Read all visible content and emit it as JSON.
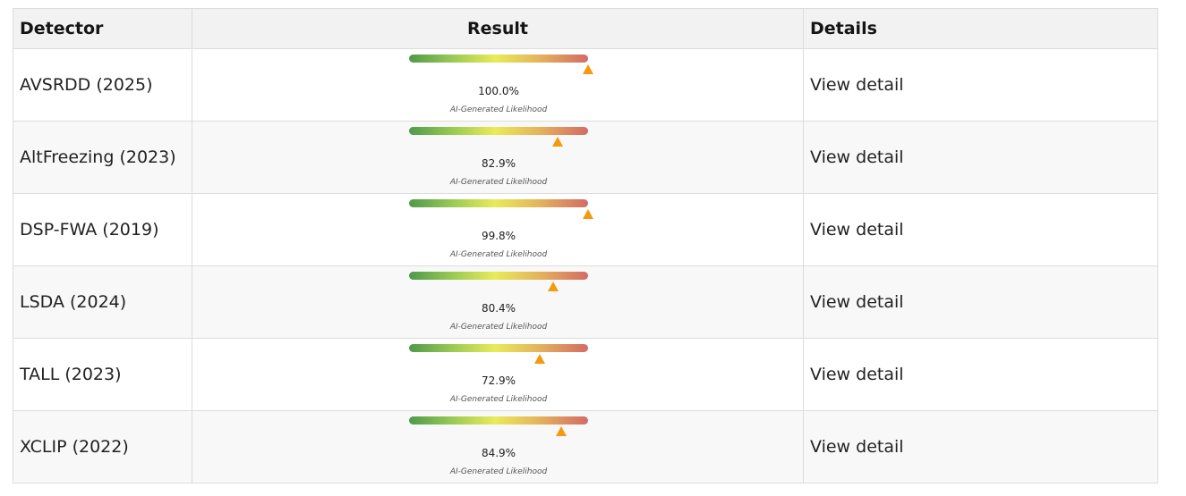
{
  "table": {
    "headers": {
      "detector": "Detector",
      "result": "Result",
      "details": "Details"
    },
    "colors": {
      "marker": "#f39a0e",
      "gradient_start": "#4f9a4b",
      "gradient_mid": "#e9ea5a",
      "gradient_end": "#d36b66"
    },
    "rows": [
      {
        "detector": "AVSRDD (2025)",
        "likelihood": 100.0,
        "percent_label": "100.0%",
        "sublabel": "AI-Generated Likelihood",
        "link": "View detail"
      },
      {
        "detector": "AltFreezing (2023)",
        "likelihood": 82.9,
        "percent_label": "82.9%",
        "sublabel": "AI-Generated Likelihood",
        "link": "View detail"
      },
      {
        "detector": "DSP-FWA (2019)",
        "likelihood": 99.8,
        "percent_label": "99.8%",
        "sublabel": "AI-Generated Likelihood",
        "link": "View detail"
      },
      {
        "detector": "LSDA (2024)",
        "likelihood": 80.4,
        "percent_label": "80.4%",
        "sublabel": "AI-Generated Likelihood",
        "link": "View detail"
      },
      {
        "detector": "TALL (2023)",
        "likelihood": 72.9,
        "percent_label": "72.9%",
        "sublabel": "AI-Generated Likelihood",
        "link": "View detail"
      },
      {
        "detector": "XCLIP (2022)",
        "likelihood": 84.9,
        "percent_label": "84.9%",
        "sublabel": "AI-Generated Likelihood",
        "link": "View detail"
      }
    ]
  }
}
